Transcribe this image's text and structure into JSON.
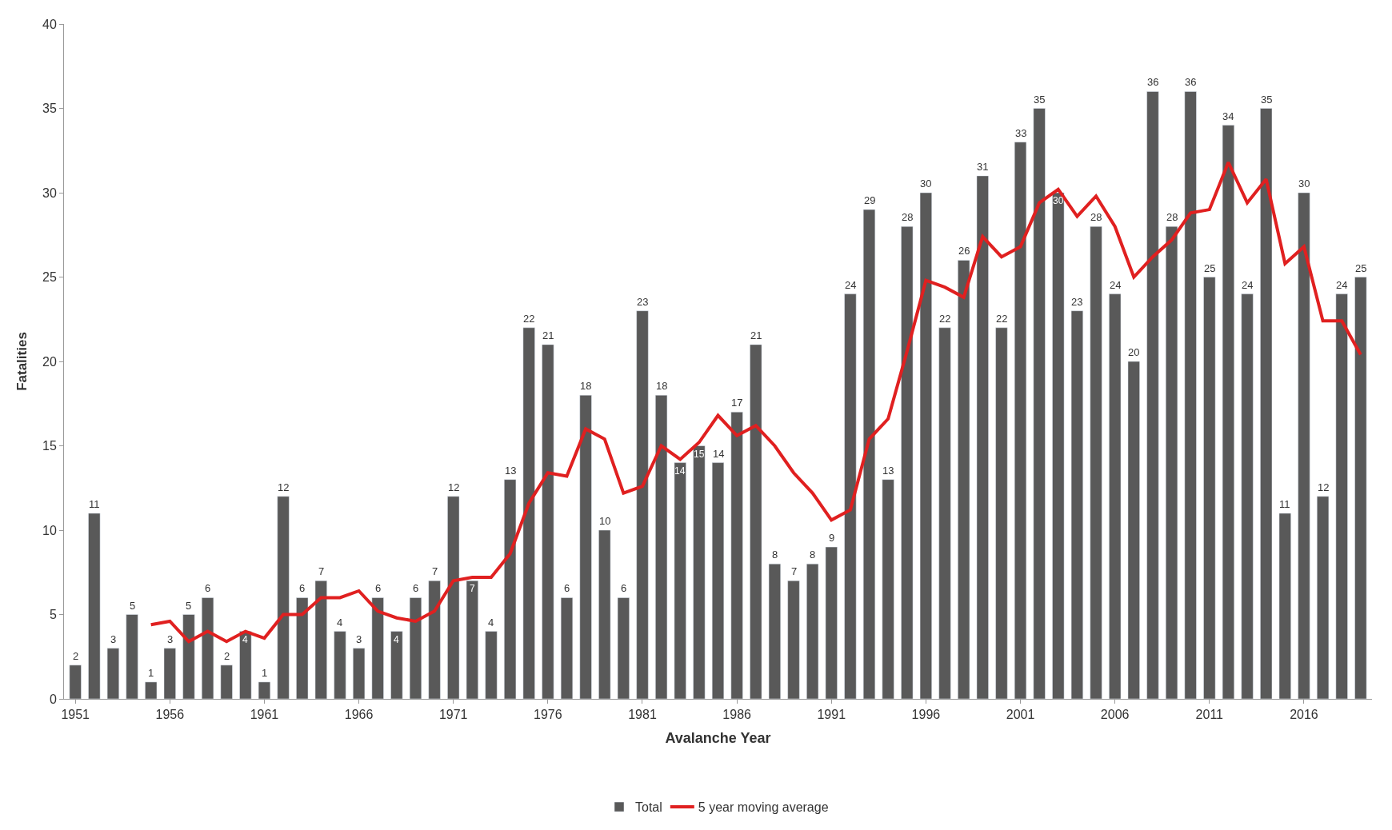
{
  "chart_data": {
    "type": "bar",
    "xlabel": "Avalanche Year",
    "ylabel": "Fatalities",
    "x": [
      1951,
      1952,
      1953,
      1954,
      1955,
      1956,
      1957,
      1958,
      1959,
      1960,
      1961,
      1962,
      1963,
      1964,
      1965,
      1966,
      1967,
      1968,
      1969,
      1970,
      1971,
      1972,
      1973,
      1974,
      1975,
      1976,
      1977,
      1978,
      1979,
      1980,
      1981,
      1982,
      1983,
      1984,
      1985,
      1986,
      1987,
      1988,
      1989,
      1990,
      1991,
      1992,
      1993,
      1994,
      1995,
      1996,
      1997,
      1998,
      1999,
      2000,
      2001,
      2002,
      2003,
      2004,
      2005,
      2006,
      2007,
      2008,
      2009,
      2010,
      2011,
      2012,
      2013,
      2014,
      2015,
      2016,
      2017,
      2018,
      2019
    ],
    "xlim": [
      1950.4,
      2019.6
    ],
    "xticks": [
      1951,
      1956,
      1961,
      1966,
      1971,
      1976,
      1981,
      1986,
      1991,
      1996,
      2001,
      2006,
      2011,
      2016
    ],
    "ylim": [
      0,
      40
    ],
    "yticks": [
      0,
      5,
      10,
      15,
      20,
      25,
      30,
      35,
      40
    ],
    "legend": "bottom",
    "series": [
      {
        "name": "Total",
        "type": "bar",
        "color": "#595959",
        "data_labels": true,
        "values": [
          2,
          11,
          3,
          5,
          1,
          3,
          5,
          6,
          2,
          4,
          1,
          12,
          6,
          7,
          4,
          3,
          6,
          4,
          6,
          7,
          12,
          7,
          4,
          13,
          22,
          21,
          6,
          18,
          10,
          6,
          23,
          18,
          14,
          15,
          14,
          17,
          21,
          8,
          7,
          8,
          9,
          24,
          29,
          13,
          28,
          30,
          22,
          26,
          31,
          22,
          33,
          35,
          30,
          23,
          28,
          24,
          20,
          36,
          28,
          36,
          25,
          34,
          24,
          35,
          11,
          30,
          12,
          24,
          25
        ]
      },
      {
        "name": "5 year moving average",
        "type": "line",
        "color": "#e02020",
        "marker": "none",
        "line_style": "solid",
        "values": [
          null,
          null,
          null,
          null,
          4.4,
          4.6,
          3.4,
          4.0,
          3.4,
          4.0,
          3.6,
          5.0,
          5.0,
          6.0,
          6.0,
          6.4,
          5.2,
          4.8,
          4.6,
          5.2,
          7.0,
          7.2,
          7.2,
          8.6,
          11.6,
          13.4,
          13.2,
          16.0,
          15.4,
          12.2,
          12.6,
          15.0,
          14.2,
          15.2,
          16.8,
          15.6,
          16.2,
          15.0,
          13.4,
          12.2,
          10.6,
          11.2,
          15.4,
          16.6,
          20.6,
          24.8,
          24.4,
          23.8,
          27.4,
          26.2,
          26.8,
          29.4,
          30.2,
          28.6,
          29.8,
          28.0,
          25.0,
          26.2,
          27.2,
          28.8,
          29.0,
          31.8,
          29.4,
          30.8,
          25.8,
          26.8,
          22.4,
          22.4,
          20.4
        ]
      }
    ]
  }
}
